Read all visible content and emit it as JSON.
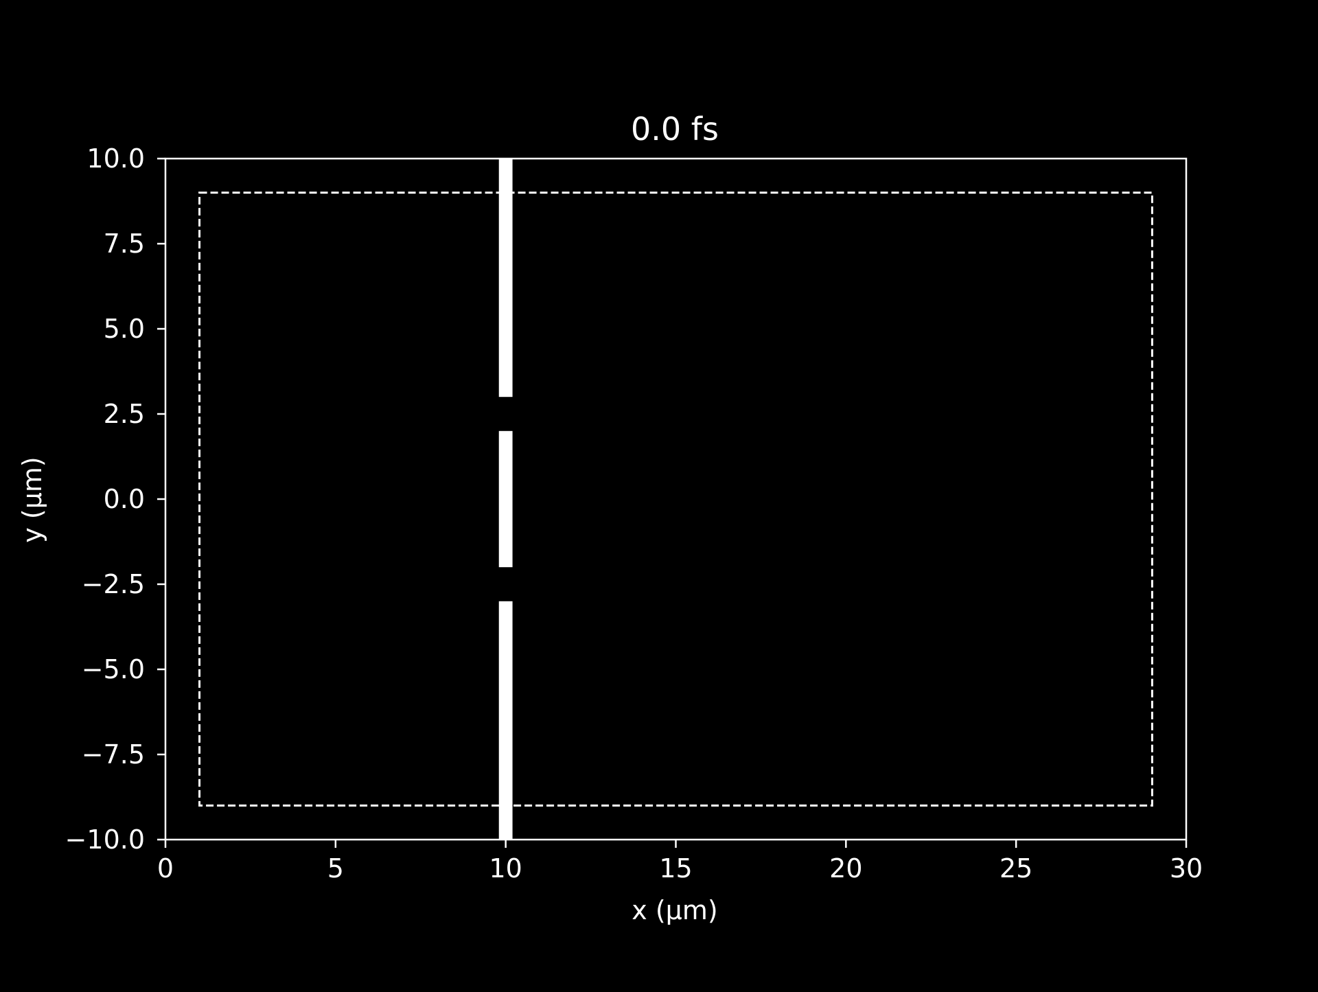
{
  "chart_data": {
    "type": "heatmap",
    "title": "0.0 fs",
    "xlabel": "x (µm)",
    "ylabel": "y (µm)",
    "xlim": [
      0,
      30
    ],
    "ylim": [
      -10,
      10
    ],
    "xticks": [
      0,
      5,
      10,
      15,
      20,
      25,
      30
    ],
    "xtick_labels": [
      "0",
      "5",
      "10",
      "15",
      "20",
      "25",
      "30"
    ],
    "yticks": [
      -10,
      -7.5,
      -5,
      -2.5,
      0,
      2.5,
      5,
      7.5,
      10
    ],
    "ytick_labels": [
      "−10.0",
      "−7.5",
      "−5.0",
      "−2.5",
      "0.0",
      "2.5",
      "5.0",
      "7.5",
      "10.0"
    ],
    "grid": false,
    "background_color": "#000000",
    "foreground_color": "#ffffff",
    "wall_segments": [
      {
        "x0": 9.8,
        "x1": 10.2,
        "y0": 3,
        "y1": 10
      },
      {
        "x0": 9.8,
        "x1": 10.2,
        "y0": -2,
        "y1": 2
      },
      {
        "x0": 9.8,
        "x1": 10.2,
        "y0": -10,
        "y1": -3
      }
    ],
    "boundary_box": {
      "x0": 1,
      "x1": 29,
      "y0": -9,
      "y1": 9,
      "style": "dashed"
    }
  }
}
